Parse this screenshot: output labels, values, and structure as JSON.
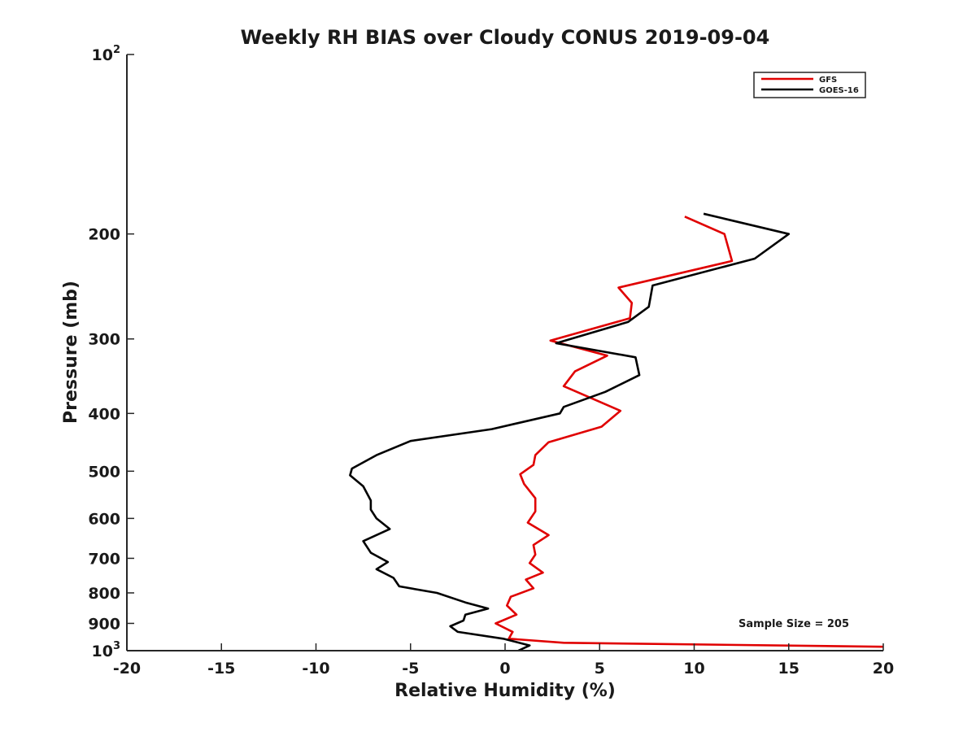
{
  "chart_data": {
    "type": "line",
    "title": "Weekly RH BIAS over Cloudy CONUS 2019-09-04",
    "xlabel": "Relative Humidity (%)",
    "ylabel": "Pressure (mb)",
    "xlim": [
      -20,
      20
    ],
    "ylim": [
      100,
      1000
    ],
    "y_scale": "log",
    "y_reversed": true,
    "grid": false,
    "x_ticks": [
      -20,
      -15,
      -10,
      -5,
      0,
      5,
      10,
      15,
      20
    ],
    "x_tick_labels": [
      "-20",
      "-15",
      "-10",
      "-5",
      "0",
      "5",
      "10",
      "15",
      "20"
    ],
    "y_ticks": [
      100,
      200,
      300,
      400,
      500,
      600,
      700,
      800,
      900,
      1000
    ],
    "y_tick_labels": [
      {
        "base": "10",
        "exp": "2"
      },
      {
        "base": "200",
        "exp": ""
      },
      {
        "base": "300",
        "exp": ""
      },
      {
        "base": "400",
        "exp": ""
      },
      {
        "base": "500",
        "exp": ""
      },
      {
        "base": "600",
        "exp": ""
      },
      {
        "base": "700",
        "exp": ""
      },
      {
        "base": "800",
        "exp": ""
      },
      {
        "base": "900",
        "exp": ""
      },
      {
        "base": "10",
        "exp": "3"
      }
    ],
    "legend_position": "top-right",
    "annotation": "Sample Size = 205",
    "series": [
      {
        "name": "GFS",
        "color": "#e00000",
        "x": [
          9.5,
          11.6,
          12.0,
          6.0,
          6.7,
          6.6,
          2.4,
          5.4,
          3.7,
          3.1,
          6.1,
          5.1,
          2.3,
          1.6,
          1.5,
          0.8,
          1.0,
          1.6,
          1.6,
          1.2,
          2.3,
          1.5,
          1.6,
          1.3,
          2.0,
          1.1,
          1.5,
          0.3,
          0.1,
          0.6,
          -0.5,
          0.4,
          0.2,
          3.1,
          20.0
        ],
        "y": [
          187,
          200,
          222,
          246,
          261,
          277,
          302,
          320,
          340,
          360,
          396,
          421,
          447,
          470,
          488,
          506,
          525,
          555,
          584,
          610,
          640,
          665,
          690,
          713,
          740,
          760,
          786,
          812,
          840,
          870,
          900,
          930,
          955,
          970,
          985
        ]
      },
      {
        "name": "GOES-16",
        "color": "#000000",
        "x": [
          10.5,
          15.0,
          13.2,
          7.8,
          7.6,
          6.5,
          2.7,
          6.9,
          7.1,
          5.3,
          3.1,
          2.9,
          -0.7,
          -5.0,
          -6.8,
          -8.1,
          -8.2,
          -7.5,
          -7.1,
          -7.1,
          -6.8,
          -6.1,
          -7.5,
          -7.1,
          -6.2,
          -6.8,
          -5.9,
          -5.6,
          -3.6,
          -2.1,
          -0.9,
          -2.1,
          -2.2,
          -2.9,
          -2.5,
          -0.1,
          1.3,
          0.7
        ],
        "y": [
          185,
          200,
          220,
          244,
          265,
          281,
          305,
          322,
          345,
          368,
          390,
          400,
          425,
          445,
          470,
          495,
          508,
          530,
          560,
          580,
          600,
          625,
          655,
          685,
          710,
          730,
          755,
          780,
          800,
          830,
          850,
          870,
          890,
          910,
          930,
          955,
          980,
          1000
        ]
      }
    ]
  }
}
